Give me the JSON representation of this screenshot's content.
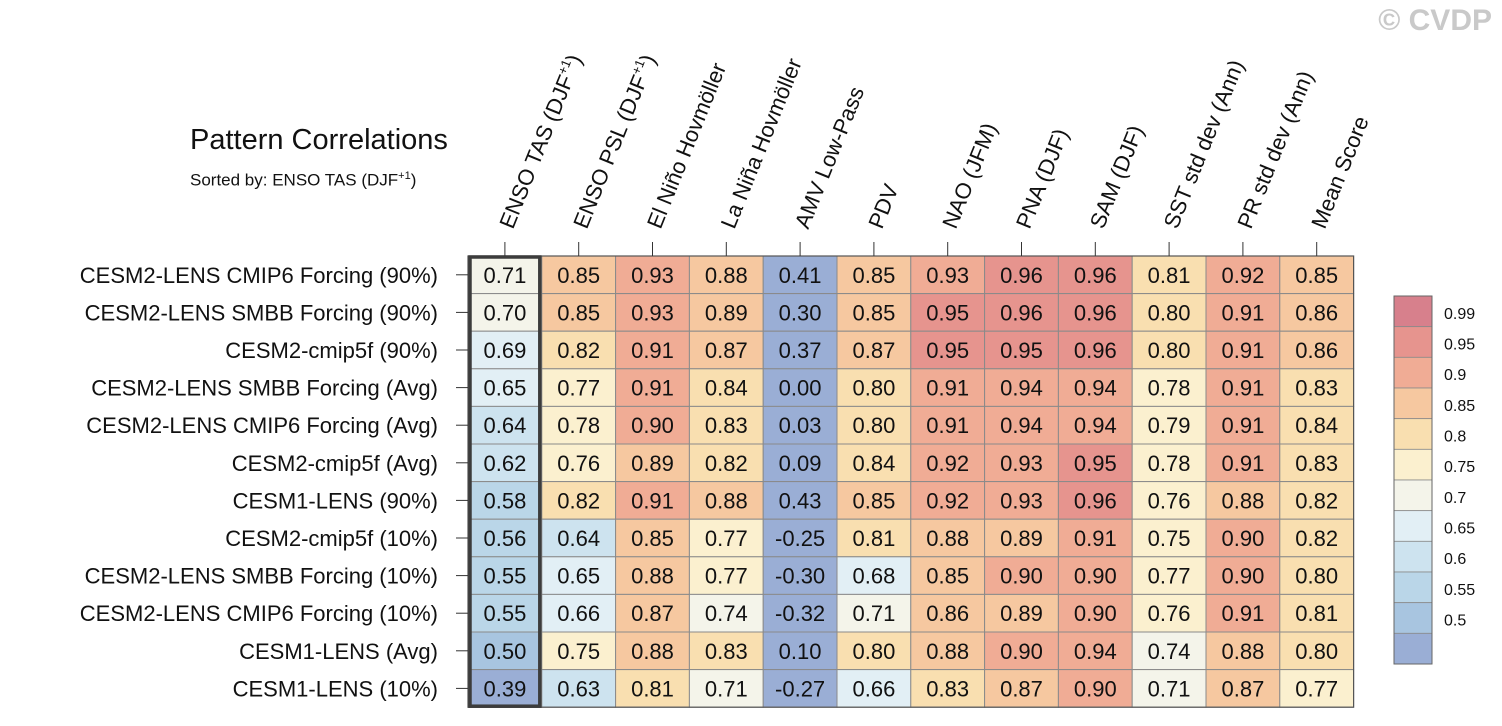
{
  "watermark": "© CVDP",
  "title": "Pattern Correlations",
  "subtitle": {
    "prefix": "Sorted by: ENSO TAS (DJF",
    "sup": "+1",
    "suffix": ")"
  },
  "colorbar_ticks": [
    "0.99",
    "0.95",
    "0.9",
    "0.85",
    "0.8",
    "0.75",
    "0.7",
    "0.65",
    "0.6",
    "0.55",
    "0.5"
  ],
  "chart_data": {
    "type": "heatmap",
    "title": "Pattern Correlations",
    "columns": [
      {
        "label": "ENSO TAS (DJF",
        "sup": "+1",
        "after": ")"
      },
      {
        "label": "ENSO PSL (DJF",
        "sup": "+1",
        "after": ")"
      },
      {
        "label": "El Niño Hovmöller"
      },
      {
        "label": "La Niña Hovmöller"
      },
      {
        "label": "AMV Low-Pass"
      },
      {
        "label": "PDV"
      },
      {
        "label": "NAO (JFM)"
      },
      {
        "label": "PNA (DJF)"
      },
      {
        "label": "SAM (DJF)"
      },
      {
        "label": "SST std dev (Ann)"
      },
      {
        "label": "PR std dev (Ann)"
      },
      {
        "label": "Mean Score"
      }
    ],
    "rows": [
      "CESM2-LENS CMIP6 Forcing (90%)",
      "CESM2-LENS SMBB Forcing (90%)",
      "CESM2-cmip5f (90%)",
      "CESM2-LENS SMBB Forcing (Avg)",
      "CESM2-LENS CMIP6 Forcing (Avg)",
      "CESM2-cmip5f (Avg)",
      "CESM1-LENS (90%)",
      "CESM2-cmip5f (10%)",
      "CESM2-LENS SMBB Forcing (10%)",
      "CESM2-LENS CMIP6 Forcing (10%)",
      "CESM1-LENS (Avg)",
      "CESM1-LENS (10%)"
    ],
    "values": [
      [
        "0.71",
        "0.85",
        "0.93",
        "0.88",
        "0.41",
        "0.85",
        "0.93",
        "0.96",
        "0.96",
        "0.81",
        "0.92",
        "0.85"
      ],
      [
        "0.70",
        "0.85",
        "0.93",
        "0.89",
        "0.30",
        "0.85",
        "0.95",
        "0.96",
        "0.96",
        "0.80",
        "0.91",
        "0.86"
      ],
      [
        "0.69",
        "0.82",
        "0.91",
        "0.87",
        "0.37",
        "0.87",
        "0.95",
        "0.95",
        "0.96",
        "0.80",
        "0.91",
        "0.86"
      ],
      [
        "0.65",
        "0.77",
        "0.91",
        "0.84",
        "0.00",
        "0.80",
        "0.91",
        "0.94",
        "0.94",
        "0.78",
        "0.91",
        "0.83"
      ],
      [
        "0.64",
        "0.78",
        "0.90",
        "0.83",
        "0.03",
        "0.80",
        "0.91",
        "0.94",
        "0.94",
        "0.79",
        "0.91",
        "0.84"
      ],
      [
        "0.62",
        "0.76",
        "0.89",
        "0.82",
        "0.09",
        "0.84",
        "0.92",
        "0.93",
        "0.95",
        "0.78",
        "0.91",
        "0.83"
      ],
      [
        "0.58",
        "0.82",
        "0.91",
        "0.88",
        "0.43",
        "0.85",
        "0.92",
        "0.93",
        "0.96",
        "0.76",
        "0.88",
        "0.82"
      ],
      [
        "0.56",
        "0.64",
        "0.85",
        "0.77",
        "-0.25",
        "0.81",
        "0.88",
        "0.89",
        "0.91",
        "0.75",
        "0.90",
        "0.82"
      ],
      [
        "0.55",
        "0.65",
        "0.88",
        "0.77",
        "-0.30",
        "0.68",
        "0.85",
        "0.90",
        "0.90",
        "0.77",
        "0.90",
        "0.80"
      ],
      [
        "0.55",
        "0.66",
        "0.87",
        "0.74",
        "-0.32",
        "0.71",
        "0.86",
        "0.89",
        "0.90",
        "0.76",
        "0.91",
        "0.81"
      ],
      [
        "0.50",
        "0.75",
        "0.88",
        "0.83",
        "0.10",
        "0.80",
        "0.88",
        "0.90",
        "0.94",
        "0.74",
        "0.88",
        "0.80"
      ],
      [
        "0.39",
        "0.63",
        "0.81",
        "0.71",
        "-0.27",
        "0.66",
        "0.83",
        "0.87",
        "0.90",
        "0.71",
        "0.87",
        "0.77"
      ]
    ],
    "highlight_column": 0,
    "color_levels": [
      0.5,
      0.55,
      0.6,
      0.65,
      0.7,
      0.75,
      0.8,
      0.85,
      0.9,
      0.95,
      0.99
    ],
    "colors": [
      "#9aaed5",
      "#a8c5e0",
      "#bad6e8",
      "#cde3ef",
      "#e2eff5",
      "#f4f4ea",
      "#fbf0cf",
      "#f9dfb0",
      "#f6c8a0",
      "#f0ac95",
      "#e6948e",
      "#d7808c"
    ],
    "legend": "right"
  }
}
